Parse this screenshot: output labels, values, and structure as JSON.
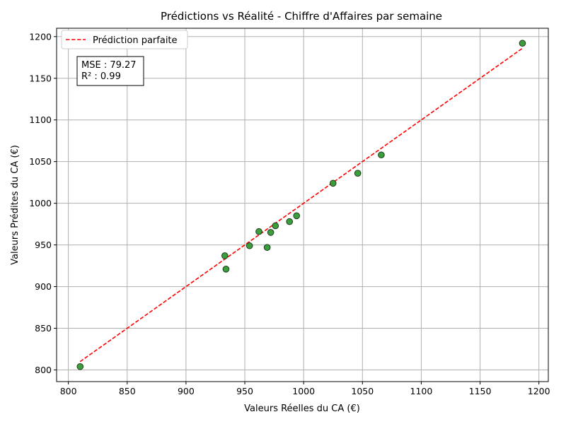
{
  "chart_data": {
    "type": "scatter",
    "title": "Prédictions vs Réalité - Chiffre d'Affaires par semaine",
    "xlabel": "Valeurs Réelles du CA (€)",
    "ylabel": "Valeurs Prédites du CA (€)",
    "xlim": [
      790,
      1208
    ],
    "ylim": [
      786,
      1210
    ],
    "xticks": [
      800,
      850,
      900,
      950,
      1000,
      1050,
      1100,
      1150,
      1200
    ],
    "yticks": [
      800,
      850,
      900,
      950,
      1000,
      1050,
      1100,
      1150,
      1200
    ],
    "grid": true,
    "legend_position": "top-left",
    "points": [
      {
        "x": 810,
        "y": 804
      },
      {
        "x": 933,
        "y": 937
      },
      {
        "x": 934,
        "y": 921
      },
      {
        "x": 954,
        "y": 949
      },
      {
        "x": 962,
        "y": 966
      },
      {
        "x": 969,
        "y": 947
      },
      {
        "x": 972,
        "y": 965
      },
      {
        "x": 976,
        "y": 973
      },
      {
        "x": 988,
        "y": 978
      },
      {
        "x": 994,
        "y": 985
      },
      {
        "x": 1025,
        "y": 1024
      },
      {
        "x": 1046,
        "y": 1036
      },
      {
        "x": 1066,
        "y": 1058
      },
      {
        "x": 1186,
        "y": 1192
      }
    ],
    "reference_line": {
      "name": "Prédiction parfaite",
      "from": [
        810,
        810
      ],
      "to": [
        1186,
        1186
      ],
      "color": "#ff0000",
      "style": "dashed"
    },
    "point_color": "#339933",
    "point_edge_color": "#1a3a1a",
    "stats": {
      "mse_text": "MSE : 79.27",
      "r2_text": "R² : 0.99"
    }
  }
}
